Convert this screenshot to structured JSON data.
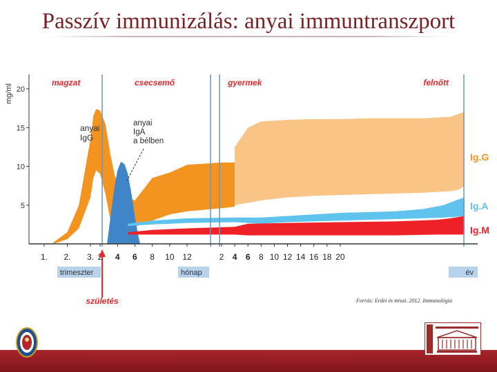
{
  "title": "Passzív immunizálás: anyai immuntranszport",
  "source_note": "Forrás: Erdei és mtsai. 2012. Immunológia",
  "colors": {
    "igg": "#f39320",
    "igg_adult": "#f8c586",
    "iga_blood": "#5fc3ee",
    "iga_gut": "#3f85c7",
    "igm": "#ee2127",
    "phase_label": "#e8262d",
    "period_box": "#b7d3ec",
    "divider": "#6f94be",
    "title": "#7a1f24"
  },
  "chart_data": {
    "type": "area",
    "ylabel": "mg/ml",
    "yticks": [
      5,
      10,
      15,
      20
    ],
    "ylim": [
      0,
      21
    ],
    "phases": [
      "magzat",
      "csecsemő",
      "gyermek",
      "felnőtt"
    ],
    "x_groups": [
      {
        "label": "trimeszter",
        "ticks": [
          "1.",
          "2.",
          "3."
        ]
      },
      {
        "label": "hónap",
        "ticks": [
          "2",
          "4",
          "6",
          "8",
          "10",
          "12"
        ]
      },
      {
        "label": "év",
        "ticks": [
          "2",
          "4",
          "6",
          "8",
          "10",
          "12",
          "14",
          "16",
          "18",
          "20"
        ]
      }
    ],
    "event_label": "születés",
    "annotations": [
      {
        "text": [
          "anyai",
          "IgG"
        ]
      },
      {
        "text": [
          "anyai",
          "IgA",
          "a bélben"
        ]
      }
    ],
    "series_labels": [
      "Ig.G",
      "Ig.A",
      "Ig.M"
    ],
    "series": [
      {
        "key": "maternal_igg",
        "points": [
          {
            "x": 0.4,
            "lo": 0.0,
            "hi": 0.2
          },
          {
            "x": 1.0,
            "lo": 0.6,
            "hi": 1.5
          },
          {
            "x": 1.5,
            "lo": 2.0,
            "hi": 5.0
          },
          {
            "x": 2.0,
            "lo": 6.0,
            "hi": 13.5
          },
          {
            "x": 2.3,
            "lo": 8.5,
            "hi": 16.5
          },
          {
            "x": 2.6,
            "lo": 9.5,
            "hi": 17.4
          },
          {
            "x": 3.0,
            "lo": 9.0,
            "hi": 17.2
          },
          {
            "x": 3.3,
            "lo": 6.5,
            "hi": 15.5
          },
          {
            "x": 3.6,
            "lo": 3.0,
            "hi": 11.5
          },
          {
            "x": 4.0,
            "lo": 1.0,
            "hi": 7.0
          },
          {
            "x": 4.6,
            "lo": 0.2,
            "hi": 4.0
          },
          {
            "x": 5.0,
            "lo": 0.0,
            "hi": 2.5
          }
        ]
      },
      {
        "key": "infant_igg",
        "points": [
          {
            "x": 3.8,
            "lo": 1.0,
            "hi": 9.0
          },
          {
            "x": 4.3,
            "lo": 1.5,
            "hi": 6.8
          },
          {
            "x": 4.6,
            "lo": 2.0,
            "hi": 6.0
          },
          {
            "x": 5.0,
            "lo": 2.2,
            "hi": 5.6
          },
          {
            "x": 6.0,
            "lo": 3.0,
            "hi": 8.5
          },
          {
            "x": 7.0,
            "lo": 3.8,
            "hi": 9.2
          },
          {
            "x": 8.0,
            "lo": 4.2,
            "hi": 10.2
          },
          {
            "x": 9.0,
            "lo": 4.6,
            "hi": 10.5
          },
          {
            "x": 10.0,
            "lo": 4.8,
            "hi": 10.5
          }
        ]
      },
      {
        "key": "child_igg",
        "points": [
          {
            "x": 10.0,
            "lo": 5.0,
            "hi": 12.5
          },
          {
            "x": 11.0,
            "lo": 5.3,
            "hi": 15.0
          },
          {
            "x": 12.0,
            "lo": 5.6,
            "hi": 15.8
          },
          {
            "x": 14.0,
            "lo": 6.0,
            "hi": 16.0
          },
          {
            "x": 16.0,
            "lo": 6.2,
            "hi": 16.1
          },
          {
            "x": 18.0,
            "lo": 6.3,
            "hi": 16.1
          },
          {
            "x": 20.0,
            "lo": 6.4,
            "hi": 16.2
          },
          {
            "x": 22.0,
            "lo": 6.5,
            "hi": 16.2
          },
          {
            "x": 24.0,
            "lo": 6.6,
            "hi": 16.2
          },
          {
            "x": 26.0,
            "lo": 6.8,
            "hi": 16.4
          },
          {
            "x": 26.6,
            "lo": 7.0,
            "hi": 16.8
          },
          {
            "x": 27.0,
            "lo": 7.5,
            "hi": 17.0
          }
        ]
      },
      {
        "key": "maternal_iga_gut",
        "points": [
          {
            "x": 3.4,
            "lo": 0.0,
            "hi": 0.0
          },
          {
            "x": 3.6,
            "lo": 0.0,
            "hi": 3.5
          },
          {
            "x": 3.8,
            "lo": 0.0,
            "hi": 7.0
          },
          {
            "x": 4.0,
            "lo": 0.0,
            "hi": 9.5
          },
          {
            "x": 4.2,
            "lo": 0.0,
            "hi": 10.6
          },
          {
            "x": 4.4,
            "lo": 0.0,
            "hi": 10.3
          },
          {
            "x": 4.6,
            "lo": 0.0,
            "hi": 9.0
          },
          {
            "x": 4.8,
            "lo": 0.0,
            "hi": 6.5
          },
          {
            "x": 5.0,
            "lo": 0.0,
            "hi": 3.5
          },
          {
            "x": 5.2,
            "lo": 0.0,
            "hi": 1.0
          },
          {
            "x": 5.3,
            "lo": 0.0,
            "hi": 0.0
          }
        ]
      },
      {
        "key": "iga_blood",
        "points": [
          {
            "x": 4.6,
            "lo": 2.3,
            "hi": 2.6
          },
          {
            "x": 6.0,
            "lo": 2.5,
            "hi": 3.0
          },
          {
            "x": 8.0,
            "lo": 2.7,
            "hi": 3.3
          },
          {
            "x": 10.0,
            "lo": 2.8,
            "hi": 3.4
          },
          {
            "x": 12.0,
            "lo": 2.6,
            "hi": 3.4
          },
          {
            "x": 14.0,
            "lo": 2.8,
            "hi": 3.6
          },
          {
            "x": 16.0,
            "lo": 2.9,
            "hi": 3.8
          },
          {
            "x": 18.0,
            "lo": 3.0,
            "hi": 4.0
          },
          {
            "x": 20.0,
            "lo": 3.1,
            "hi": 4.1
          },
          {
            "x": 22.0,
            "lo": 3.2,
            "hi": 4.2
          },
          {
            "x": 24.0,
            "lo": 3.3,
            "hi": 4.5
          },
          {
            "x": 25.5,
            "lo": 3.4,
            "hi": 5.0
          },
          {
            "x": 26.5,
            "lo": 3.5,
            "hi": 5.7
          },
          {
            "x": 27.0,
            "lo": 3.6,
            "hi": 6.0
          }
        ]
      },
      {
        "key": "igm",
        "points": [
          {
            "x": 4.6,
            "lo": 1.2,
            "hi": 1.5
          },
          {
            "x": 6.0,
            "lo": 1.2,
            "hi": 1.8
          },
          {
            "x": 8.0,
            "lo": 1.2,
            "hi": 2.0
          },
          {
            "x": 10.0,
            "lo": 1.2,
            "hi": 2.2
          },
          {
            "x": 11.0,
            "lo": 1.1,
            "hi": 2.6
          },
          {
            "x": 14.0,
            "lo": 1.1,
            "hi": 2.7
          },
          {
            "x": 18.0,
            "lo": 1.1,
            "hi": 2.8
          },
          {
            "x": 22.0,
            "lo": 1.1,
            "hi": 2.9
          },
          {
            "x": 25.0,
            "lo": 1.2,
            "hi": 3.1
          },
          {
            "x": 26.0,
            "lo": 1.2,
            "hi": 3.3
          },
          {
            "x": 27.0,
            "lo": 1.2,
            "hi": 3.6
          }
        ]
      }
    ]
  }
}
